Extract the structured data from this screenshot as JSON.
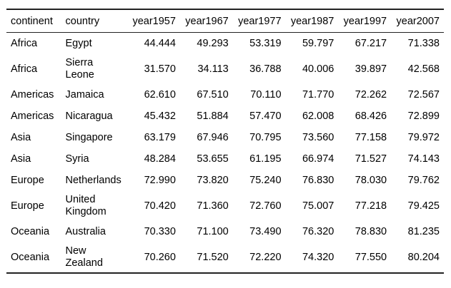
{
  "chart_data": {
    "type": "table",
    "columns": [
      "continent",
      "country",
      "year1957",
      "year1967",
      "year1977",
      "year1987",
      "year1997",
      "year2007"
    ],
    "rows": [
      {
        "continent": "Africa",
        "country": "Egypt",
        "values": [
          "44.444",
          "49.293",
          "53.319",
          "59.797",
          "67.217",
          "71.338"
        ]
      },
      {
        "continent": "Africa",
        "country": "Sierra Leone",
        "values": [
          "31.570",
          "34.113",
          "36.788",
          "40.006",
          "39.897",
          "42.568"
        ]
      },
      {
        "continent": "Americas",
        "country": "Jamaica",
        "values": [
          "62.610",
          "67.510",
          "70.110",
          "71.770",
          "72.262",
          "72.567"
        ]
      },
      {
        "continent": "Americas",
        "country": "Nicaragua",
        "values": [
          "45.432",
          "51.884",
          "57.470",
          "62.008",
          "68.426",
          "72.899"
        ]
      },
      {
        "continent": "Asia",
        "country": "Singapore",
        "values": [
          "63.179",
          "67.946",
          "70.795",
          "73.560",
          "77.158",
          "79.972"
        ]
      },
      {
        "continent": "Asia",
        "country": "Syria",
        "values": [
          "48.284",
          "53.655",
          "61.195",
          "66.974",
          "71.527",
          "74.143"
        ]
      },
      {
        "continent": "Europe",
        "country": "Netherlands",
        "values": [
          "72.990",
          "73.820",
          "75.240",
          "76.830",
          "78.030",
          "79.762"
        ]
      },
      {
        "continent": "Europe",
        "country": "United Kingdom",
        "values": [
          "70.420",
          "71.360",
          "72.760",
          "75.007",
          "77.218",
          "79.425"
        ]
      },
      {
        "continent": "Oceania",
        "country": "Australia",
        "values": [
          "70.330",
          "71.100",
          "73.490",
          "76.320",
          "78.830",
          "81.235"
        ]
      },
      {
        "continent": "Oceania",
        "country": "New Zealand",
        "values": [
          "70.260",
          "71.520",
          "72.220",
          "74.320",
          "77.550",
          "80.204"
        ]
      }
    ]
  }
}
